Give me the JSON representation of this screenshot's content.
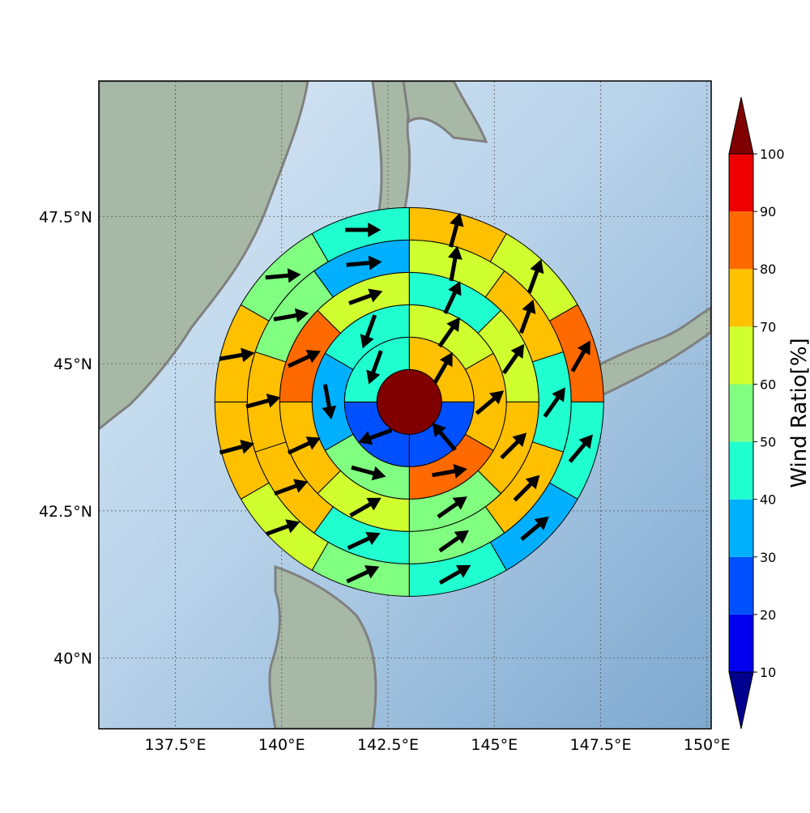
{
  "map": {
    "lon_range": [
      135.7,
      150.1
    ],
    "lat_range": [
      38.8,
      49.8
    ],
    "lon_ticks": [
      {
        "value": 137.5,
        "label": "137.5°E"
      },
      {
        "value": 140.0,
        "label": "140°E"
      },
      {
        "value": 142.5,
        "label": "142.5°E"
      },
      {
        "value": 145.0,
        "label": "145°E"
      },
      {
        "value": 147.5,
        "label": "147.5°E"
      },
      {
        "value": 150.0,
        "label": "150°E"
      }
    ],
    "lat_ticks": [
      {
        "value": 40.0,
        "label": "40°N"
      },
      {
        "value": 42.5,
        "label": "42.5°N"
      },
      {
        "value": 45.0,
        "label": "45°N"
      },
      {
        "value": 47.5,
        "label": "47.5°N"
      }
    ],
    "grid": true,
    "ocean_color": "#a9c8e2",
    "land_color": "#9fb5a2",
    "coastline_color": "#808080"
  },
  "polar_grid": {
    "center": {
      "lon": 143.0,
      "lat": 44.35
    },
    "radii_deg": [
      0.55,
      1.1,
      1.65,
      2.2,
      2.75,
      3.3
    ],
    "inner_circle_color": "#800000",
    "sectors": [
      {
        "ring": 1,
        "count": 4,
        "values": [
          75,
          25,
          25,
          45
        ],
        "arrow_dir": [
          30,
          320,
          250,
          200
        ]
      },
      {
        "ring": 2,
        "count": 6,
        "values": [
          65,
          75,
          85,
          55,
          35,
          45
        ],
        "arrow_dir": [
          35,
          50,
          80,
          105,
          170,
          200
        ]
      },
      {
        "ring": 3,
        "count": 8,
        "values": [
          45,
          65,
          75,
          55,
          65,
          75,
          85,
          65
        ],
        "arrow_dir": [
          25,
          35,
          45,
          55,
          60,
          65,
          65,
          70
        ]
      },
      {
        "ring": 4,
        "count": 10,
        "values": [
          65,
          75,
          45,
          75,
          55,
          45,
          75,
          75,
          55,
          35
        ],
        "arrow_dir": [
          10,
          20,
          35,
          45,
          55,
          65,
          70,
          75,
          80,
          85
        ]
      },
      {
        "ring": 5,
        "count": 12,
        "values": [
          75,
          65,
          85,
          45,
          35,
          45,
          55,
          65,
          75,
          75,
          55,
          45
        ],
        "arrow_dir": [
          15,
          20,
          30,
          40,
          50,
          60,
          65,
          70,
          75,
          80,
          85,
          90
        ]
      }
    ]
  },
  "chart_data": {
    "type": "heatmap",
    "title": "",
    "xlabel": "",
    "ylabel": "",
    "colorbar": {
      "label": "Wind Ratio[%]",
      "ticks": [
        10,
        20,
        30,
        40,
        50,
        60,
        70,
        80,
        90,
        100
      ],
      "range": [
        10,
        100
      ],
      "extend": "both",
      "colors": [
        "#00008f",
        "#0000ee",
        "#0050ff",
        "#00b0ff",
        "#20ffd0",
        "#80ff80",
        "#d0ff2f",
        "#ffc000",
        "#ff6a00",
        "#ee0000",
        "#800000"
      ]
    }
  }
}
